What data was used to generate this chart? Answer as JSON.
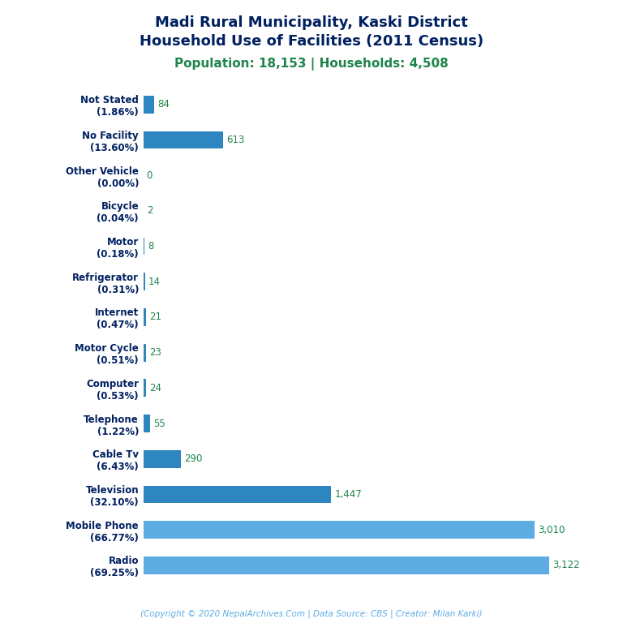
{
  "title_line1": "Madi Rural Municipality, Kaski District",
  "title_line2": "Household Use of Facilities (2011 Census)",
  "subtitle": "Population: 18,153 | Households: 4,508",
  "footer": "(Copyright © 2020 NepalArchives.Com | Data Source: CBS | Creator: Milan Karki)",
  "categories": [
    "Not Stated\n(1.86%)",
    "No Facility\n(13.60%)",
    "Other Vehicle\n(0.00%)",
    "Bicycle\n(0.04%)",
    "Motor\n(0.18%)",
    "Refrigerator\n(0.31%)",
    "Internet\n(0.47%)",
    "Motor Cycle\n(0.51%)",
    "Computer\n(0.53%)",
    "Telephone\n(1.22%)",
    "Cable Tv\n(6.43%)",
    "Television\n(32.10%)",
    "Mobile Phone\n(66.77%)",
    "Radio\n(69.25%)"
  ],
  "values": [
    84,
    613,
    0,
    2,
    8,
    14,
    21,
    23,
    24,
    55,
    290,
    1447,
    3010,
    3122
  ],
  "value_labels": [
    "84",
    "613",
    "0",
    "2",
    "8",
    "14",
    "21",
    "23",
    "24",
    "55",
    "290",
    "1,447",
    "3,010",
    "3,122"
  ],
  "bar_colors": [
    "#2e86c1",
    "#2e86c1",
    "#2e86c1",
    "#2e86c1",
    "#2e86c1",
    "#2e86c1",
    "#2e86c1",
    "#2e86c1",
    "#2e86c1",
    "#2e86c1",
    "#2e86c1",
    "#2e86c1",
    "#5dade2",
    "#5dade2"
  ],
  "title_color": "#002060",
  "subtitle_color": "#1e8449",
  "label_color": "#002060",
  "value_color": "#1e8449",
  "footer_color": "#5dade2",
  "background_color": "#ffffff",
  "xlim": [
    0,
    3500
  ],
  "bar_height": 0.5,
  "title_fontsize": 13,
  "subtitle_fontsize": 11,
  "label_fontsize": 8.5,
  "value_fontsize": 8.5,
  "footer_fontsize": 7.5
}
